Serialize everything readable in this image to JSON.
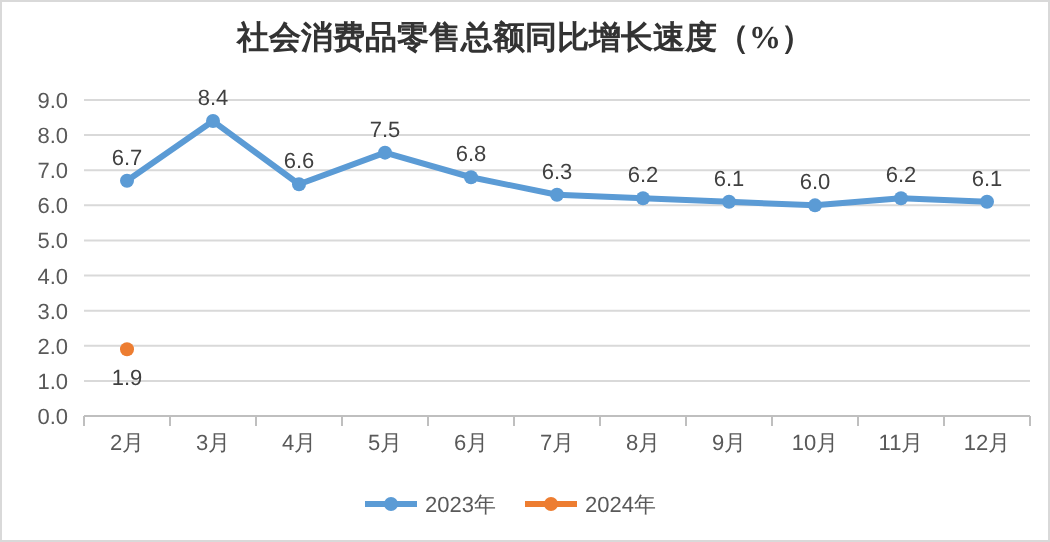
{
  "chart_data": {
    "type": "line",
    "title": "社会消费品零售总额同比增长速度（%）",
    "categories": [
      "2月",
      "3月",
      "4月",
      "5月",
      "6月",
      "7月",
      "8月",
      "9月",
      "10月",
      "11月",
      "12月"
    ],
    "series": [
      {
        "name": "2023年",
        "color": "#5b9bd5",
        "values": [
          6.7,
          8.4,
          6.6,
          7.5,
          6.8,
          6.3,
          6.2,
          6.1,
          6.0,
          6.2,
          6.1
        ],
        "value_labels": [
          "6.7",
          "8.4",
          "6.6",
          "7.5",
          "6.8",
          "6.3",
          "6.2",
          "6.1",
          "6.0",
          "6.2",
          "6.1"
        ]
      },
      {
        "name": "2024年",
        "color": "#ed7d31",
        "values": [
          1.9,
          null,
          null,
          null,
          null,
          null,
          null,
          null,
          null,
          null,
          null
        ],
        "value_labels": [
          "1.9",
          null,
          null,
          null,
          null,
          null,
          null,
          null,
          null,
          null,
          null
        ]
      }
    ],
    "ylim": [
      0,
      9
    ],
    "yticks": [
      {
        "value": 0,
        "label": "0.0"
      },
      {
        "value": 1,
        "label": "1.0"
      },
      {
        "value": 2,
        "label": "2.0"
      },
      {
        "value": 3,
        "label": "3.0"
      },
      {
        "value": 4,
        "label": "4.0"
      },
      {
        "value": 5,
        "label": "5.0"
      },
      {
        "value": 6,
        "label": "6.0"
      },
      {
        "value": 7,
        "label": "7.0"
      },
      {
        "value": 8,
        "label": "8.0"
      },
      {
        "value": 9,
        "label": "9.0"
      }
    ],
    "grid": "y",
    "legend": "bottom",
    "marker": "circle",
    "line_style": "solid"
  }
}
